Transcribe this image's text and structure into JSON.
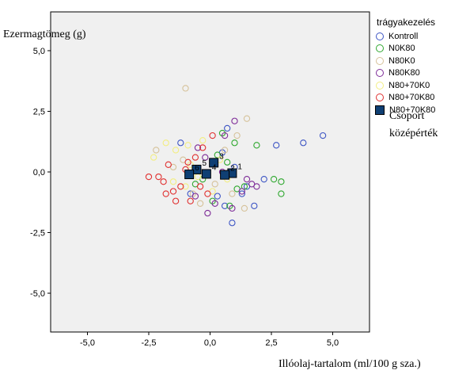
{
  "chart_data": {
    "type": "scatter",
    "xlabel": "Illóolaj-tartalom (ml/100 g sza.)",
    "ylabel": "Ezermagtömeg (g)",
    "xlim": [
      -6.5,
      6.5
    ],
    "ylim": [
      -6.6,
      6.6
    ],
    "x_ticks": [
      "-5,0",
      "-2,5",
      "0,0",
      "2,5",
      "5,0"
    ],
    "y_ticks": [
      "5,0",
      "2,5",
      "0,0",
      "-2,5",
      "-5,0"
    ],
    "x_tick_values": [
      -5,
      -2.5,
      0,
      2.5,
      5
    ],
    "y_tick_values": [
      5,
      2.5,
      0,
      -2.5,
      -5
    ],
    "grid": false,
    "legend_position": "right",
    "legend_title": "trágyakezelés",
    "series": [
      {
        "name": "Kontroll",
        "color": "#3d55c4",
        "marker": "circle",
        "points": [
          [
            4.6,
            1.5
          ],
          [
            3.8,
            1.2
          ],
          [
            2.7,
            1.1
          ],
          [
            2.2,
            -0.3
          ],
          [
            1.8,
            -1.4
          ],
          [
            1.3,
            -0.9
          ],
          [
            0.9,
            -2.1
          ],
          [
            0.7,
            1.8
          ],
          [
            0.5,
            0.8
          ],
          [
            -0.2,
            -0.1
          ],
          [
            -1.2,
            1.2
          ],
          [
            0.3,
            -1.0
          ],
          [
            1.0,
            0.2
          ],
          [
            -0.8,
            -0.9
          ],
          [
            1.5,
            -0.6
          ],
          [
            0.6,
            -1.4
          ]
        ]
      },
      {
        "name": "N0K80",
        "color": "#2fa82f",
        "marker": "circle",
        "points": [
          [
            1.9,
            1.1
          ],
          [
            2.9,
            -0.4
          ],
          [
            2.6,
            -0.3
          ],
          [
            2.9,
            -0.9
          ],
          [
            1.0,
            1.2
          ],
          [
            0.5,
            1.6
          ],
          [
            1.4,
            -0.6
          ],
          [
            0.8,
            -1.4
          ],
          [
            0.3,
            0.7
          ],
          [
            -0.3,
            -0.3
          ],
          [
            0.1,
            -1.2
          ],
          [
            1.1,
            -0.7
          ],
          [
            -0.6,
            -0.5
          ],
          [
            0.7,
            0.4
          ]
        ]
      },
      {
        "name": "N80K0",
        "color": "#d6c29a",
        "marker": "circle",
        "points": [
          [
            -1.0,
            3.45
          ],
          [
            1.5,
            2.2
          ],
          [
            1.1,
            1.5
          ],
          [
            -2.2,
            0.9
          ],
          [
            -1.5,
            0.2
          ],
          [
            -0.7,
            -0.9
          ],
          [
            0.2,
            -0.5
          ],
          [
            1.4,
            -1.5
          ],
          [
            -0.4,
            -1.3
          ],
          [
            0.9,
            -0.9
          ],
          [
            -1.1,
            0.5
          ],
          [
            0.6,
            0.9
          ]
        ]
      },
      {
        "name": "N80K80",
        "color": "#7e2c98",
        "marker": "circle",
        "points": [
          [
            1.0,
            2.1
          ],
          [
            0.6,
            1.5
          ],
          [
            -0.5,
            1.0
          ],
          [
            1.7,
            -0.5
          ],
          [
            1.9,
            -0.6
          ],
          [
            1.3,
            -0.8
          ],
          [
            0.9,
            -1.5
          ],
          [
            0.2,
            -1.3
          ],
          [
            -0.1,
            -1.7
          ],
          [
            -0.6,
            -1.0
          ],
          [
            0.5,
            0.0
          ],
          [
            -0.2,
            0.6
          ],
          [
            1.5,
            -0.3
          ]
        ]
      },
      {
        "name": "N80+70K0",
        "color": "#f2ee82",
        "marker": "circle",
        "points": [
          [
            -1.8,
            1.2
          ],
          [
            -2.3,
            0.6
          ],
          [
            -1.4,
            0.9
          ],
          [
            -0.8,
            0.3
          ],
          [
            -0.3,
            1.3
          ],
          [
            0.4,
            0.5
          ],
          [
            -1.0,
            -0.6
          ],
          [
            -0.5,
            -0.2
          ],
          [
            0.1,
            -0.8
          ],
          [
            -1.5,
            -0.4
          ],
          [
            -0.9,
            1.1
          ],
          [
            0.7,
            -0.3
          ]
        ]
      },
      {
        "name": "N80+70K80",
        "color": "#e03030",
        "marker": "circle",
        "points": [
          [
            -2.5,
            -0.2
          ],
          [
            -2.1,
            -0.2
          ],
          [
            -1.9,
            -0.4
          ],
          [
            -1.7,
            0.3
          ],
          [
            -1.5,
            -0.8
          ],
          [
            -1.2,
            -0.6
          ],
          [
            -1.0,
            0.1
          ],
          [
            -0.8,
            -1.2
          ],
          [
            -0.6,
            0.6
          ],
          [
            -0.3,
            1.0
          ],
          [
            0.1,
            1.5
          ],
          [
            -0.4,
            -0.6
          ],
          [
            -1.4,
            -1.2
          ],
          [
            -0.1,
            -0.9
          ],
          [
            -1.8,
            -0.9
          ],
          [
            -0.9,
            0.4
          ]
        ]
      }
    ],
    "group_means": {
      "name": "N80+70K80",
      "marker": "square",
      "color": "#0f3f73",
      "points": [
        {
          "x": 0.9,
          "y": -0.05,
          "label": "1"
        },
        {
          "x": 0.6,
          "y": -0.12,
          "label": "2"
        },
        {
          "x": 0.15,
          "y": 0.38,
          "label": "3"
        },
        {
          "x": -0.15,
          "y": -0.08,
          "label": "4"
        },
        {
          "x": -0.55,
          "y": 0.1,
          "label": "5"
        },
        {
          "x": -0.85,
          "y": -0.1,
          "label": "6"
        }
      ]
    },
    "annotation": "Csoport középérték"
  }
}
